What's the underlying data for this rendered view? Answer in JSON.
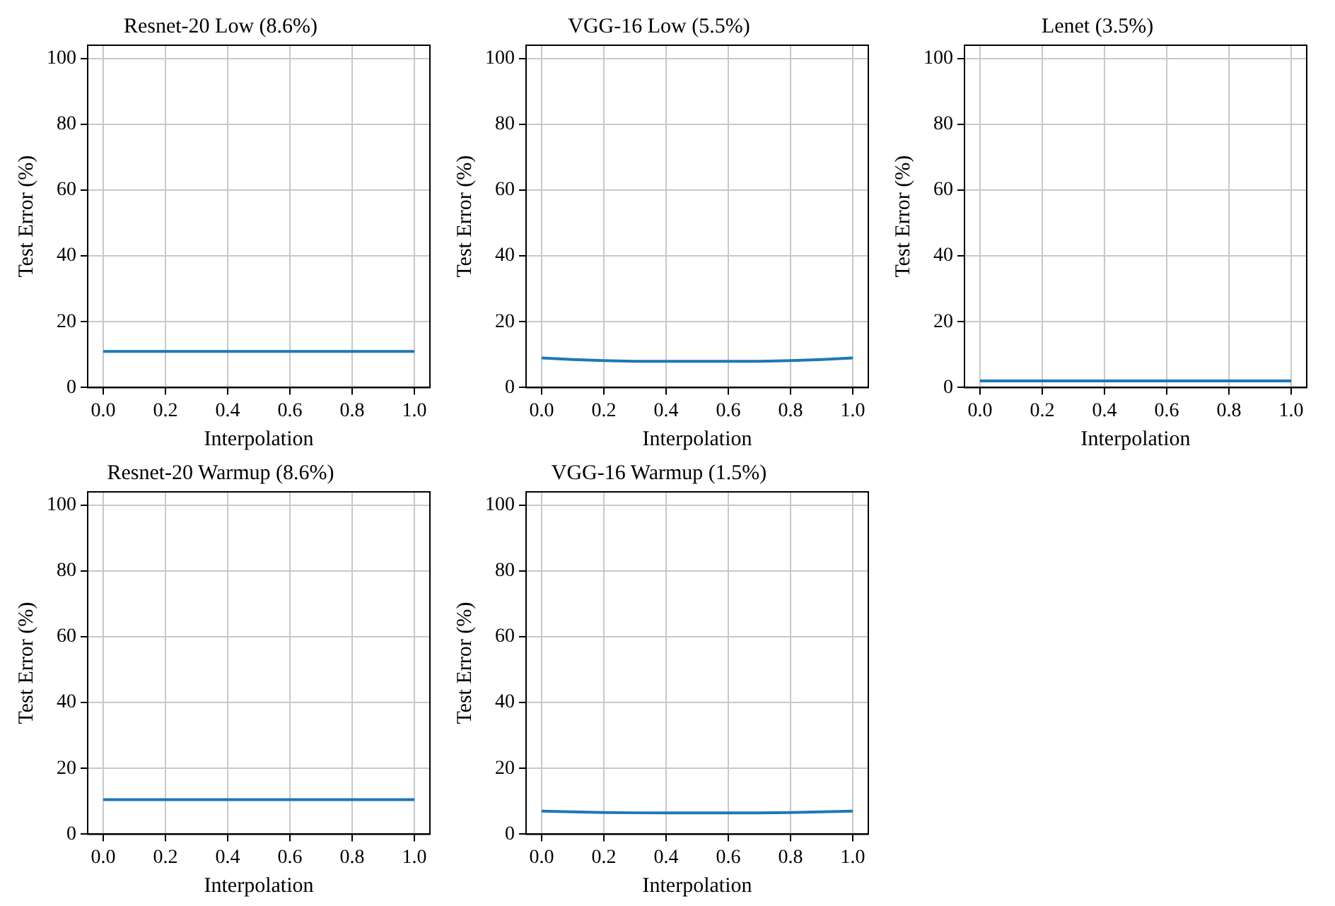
{
  "chart_data": [
    {
      "type": "line",
      "title": "Resnet-20 Low (8.6%)",
      "xlabel": "Interpolation",
      "ylabel": "Test Error (%)",
      "x": [
        0,
        0.1,
        0.2,
        0.3,
        0.4,
        0.5,
        0.6,
        0.7,
        0.8,
        0.9,
        1
      ],
      "series": [
        {
          "color": "#1f77b4",
          "values": [
            11,
            11,
            11,
            11,
            11,
            11,
            11,
            11,
            11,
            11,
            11
          ]
        }
      ],
      "xlim": [
        -0.05,
        1.05
      ],
      "ylim": [
        0,
        104
      ],
      "xticks": [
        {
          "value": 0,
          "label": "0.0"
        },
        {
          "value": 0.2,
          "label": "0.2"
        },
        {
          "value": 0.4,
          "label": "0.4"
        },
        {
          "value": 0.6,
          "label": "0.6"
        },
        {
          "value": 0.8,
          "label": "0.8"
        },
        {
          "value": 1,
          "label": "1.0"
        }
      ],
      "yticks": [
        0,
        20,
        40,
        60,
        80,
        100
      ],
      "grid": true,
      "legend": false,
      "marker": "none",
      "line_style": "solid"
    },
    {
      "type": "line",
      "title": "VGG-16 Low (5.5%)",
      "xlabel": "Interpolation",
      "ylabel": "Test Error (%)",
      "x": [
        0,
        0.1,
        0.2,
        0.3,
        0.4,
        0.5,
        0.6,
        0.7,
        0.8,
        0.9,
        1
      ],
      "series": [
        {
          "color": "#1f77b4",
          "values": [
            9,
            8.5,
            8.2,
            8,
            8,
            8,
            8,
            8,
            8.2,
            8.5,
            9
          ]
        }
      ],
      "xlim": [
        -0.05,
        1.05
      ],
      "ylim": [
        0,
        104
      ],
      "xticks": [
        {
          "value": 0,
          "label": "0.0"
        },
        {
          "value": 0.2,
          "label": "0.2"
        },
        {
          "value": 0.4,
          "label": "0.4"
        },
        {
          "value": 0.6,
          "label": "0.6"
        },
        {
          "value": 0.8,
          "label": "0.8"
        },
        {
          "value": 1,
          "label": "1.0"
        }
      ],
      "yticks": [
        0,
        20,
        40,
        60,
        80,
        100
      ],
      "grid": true,
      "legend": false,
      "marker": "none",
      "line_style": "solid"
    },
    {
      "type": "line",
      "title": "Lenet (3.5%)",
      "xlabel": "Interpolation",
      "ylabel": "Test Error (%)",
      "x": [
        0,
        0.1,
        0.2,
        0.3,
        0.4,
        0.5,
        0.6,
        0.7,
        0.8,
        0.9,
        1
      ],
      "series": [
        {
          "color": "#1f77b4",
          "values": [
            2,
            2,
            2,
            2,
            2,
            2,
            2,
            2,
            2,
            2,
            2
          ]
        }
      ],
      "xlim": [
        -0.05,
        1.05
      ],
      "ylim": [
        0,
        104
      ],
      "xticks": [
        {
          "value": 0,
          "label": "0.0"
        },
        {
          "value": 0.2,
          "label": "0.2"
        },
        {
          "value": 0.4,
          "label": "0.4"
        },
        {
          "value": 0.6,
          "label": "0.6"
        },
        {
          "value": 0.8,
          "label": "0.8"
        },
        {
          "value": 1,
          "label": "1.0"
        }
      ],
      "yticks": [
        0,
        20,
        40,
        60,
        80,
        100
      ],
      "grid": true,
      "legend": false,
      "marker": "none",
      "line_style": "solid"
    },
    {
      "type": "line",
      "title": "Resnet-20 Warmup (8.6%)",
      "xlabel": "Interpolation",
      "ylabel": "Test Error (%)",
      "x": [
        0,
        0.1,
        0.2,
        0.3,
        0.4,
        0.5,
        0.6,
        0.7,
        0.8,
        0.9,
        1
      ],
      "series": [
        {
          "color": "#1f77b4",
          "values": [
            10.5,
            10.5,
            10.5,
            10.5,
            10.5,
            10.5,
            10.5,
            10.5,
            10.5,
            10.5,
            10.5
          ]
        }
      ],
      "xlim": [
        -0.05,
        1.05
      ],
      "ylim": [
        0,
        104
      ],
      "xticks": [
        {
          "value": 0,
          "label": "0.0"
        },
        {
          "value": 0.2,
          "label": "0.2"
        },
        {
          "value": 0.4,
          "label": "0.4"
        },
        {
          "value": 0.6,
          "label": "0.6"
        },
        {
          "value": 0.8,
          "label": "0.8"
        },
        {
          "value": 1,
          "label": "1.0"
        }
      ],
      "yticks": [
        0,
        20,
        40,
        60,
        80,
        100
      ],
      "grid": true,
      "legend": false,
      "marker": "none",
      "line_style": "solid"
    },
    {
      "type": "line",
      "title": "VGG-16 Warmup (1.5%)",
      "xlabel": "Interpolation",
      "ylabel": "Test Error (%)",
      "x": [
        0,
        0.1,
        0.2,
        0.3,
        0.4,
        0.5,
        0.6,
        0.7,
        0.8,
        0.9,
        1
      ],
      "series": [
        {
          "color": "#1f77b4",
          "values": [
            7,
            6.8,
            6.6,
            6.5,
            6.5,
            6.5,
            6.5,
            6.5,
            6.6,
            6.8,
            7
          ]
        }
      ],
      "xlim": [
        -0.05,
        1.05
      ],
      "ylim": [
        0,
        104
      ],
      "xticks": [
        {
          "value": 0,
          "label": "0.0"
        },
        {
          "value": 0.2,
          "label": "0.2"
        },
        {
          "value": 0.4,
          "label": "0.4"
        },
        {
          "value": 0.6,
          "label": "0.6"
        },
        {
          "value": 0.8,
          "label": "0.8"
        },
        {
          "value": 1,
          "label": "1.0"
        }
      ],
      "yticks": [
        0,
        20,
        40,
        60,
        80,
        100
      ],
      "grid": true,
      "legend": false,
      "marker": "none",
      "line_style": "solid"
    }
  ]
}
